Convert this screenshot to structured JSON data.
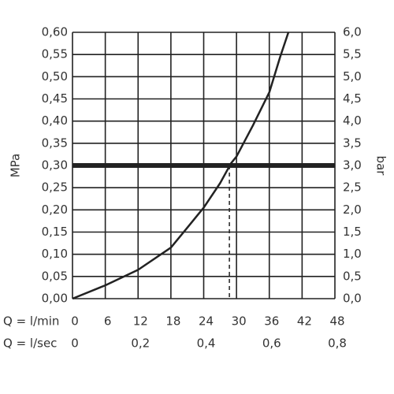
{
  "chart_data": {
    "type": "line",
    "y_label": "MPa",
    "y2_label": "bar",
    "x_label": "Q = l/min",
    "x2_label": "Q = l/sec",
    "x": [
      0,
      6,
      12,
      18,
      21,
      24,
      27,
      29,
      30,
      33,
      36,
      38,
      39.5
    ],
    "values": [
      0,
      0.03,
      0.065,
      0.115,
      0.16,
      0.205,
      0.26,
      0.305,
      0.32,
      0.39,
      0.465,
      0.545,
      0.6
    ],
    "color": "#222222",
    "xlim": [
      0,
      48
    ],
    "xticks": [
      0,
      6,
      12,
      18,
      24,
      30,
      36,
      42,
      48
    ],
    "x2lim": [
      0,
      0.8
    ],
    "x2ticks": [
      0,
      {
        "value": 0.2,
        "label": "0,2"
      },
      {
        "value": 0.4,
        "label": "0,4"
      },
      {
        "value": 0.6,
        "label": "0,6"
      },
      {
        "value": 0.8,
        "label": "0,8"
      }
    ],
    "ylim": [
      0,
      0.6
    ],
    "yticks": [
      {
        "value": 0,
        "label": "0,00"
      },
      {
        "value": 0.05,
        "label": "0,05"
      },
      {
        "value": 0.1,
        "label": "0,10"
      },
      {
        "value": 0.15,
        "label": "0,15"
      },
      {
        "value": 0.2,
        "label": "0,20"
      },
      {
        "value": 0.25,
        "label": "0,25"
      },
      {
        "value": 0.3,
        "label": "0,30"
      },
      {
        "value": 0.35,
        "label": "0,35"
      },
      {
        "value": 0.4,
        "label": "0,40"
      },
      {
        "value": 0.45,
        "label": "0,45"
      },
      {
        "value": 0.5,
        "label": "0,50"
      },
      {
        "value": 0.55,
        "label": "0,55"
      },
      {
        "value": 0.6,
        "label": "0,60"
      }
    ],
    "y2lim": [
      0,
      6
    ],
    "y2ticks": [
      {
        "value": 0,
        "label": "0,0"
      },
      {
        "value": 0.5,
        "label": "0,5"
      },
      {
        "value": 1,
        "label": "1,0"
      },
      {
        "value": 1.5,
        "label": "1,5"
      },
      {
        "value": 2,
        "label": "2,0"
      },
      {
        "value": 2.5,
        "label": "2,5"
      },
      {
        "value": 3,
        "label": "3,0"
      },
      {
        "value": 3.5,
        "label": "3,5"
      },
      {
        "value": 4,
        "label": "4,0"
      },
      {
        "value": 4.5,
        "label": "4,5"
      },
      {
        "value": 5,
        "label": "5,0"
      },
      {
        "value": 5.5,
        "label": "5,5"
      },
      {
        "value": 6,
        "label": "6,0"
      }
    ],
    "grid": true,
    "reference_line": {
      "y": 0.3,
      "x": 28.7
    }
  }
}
